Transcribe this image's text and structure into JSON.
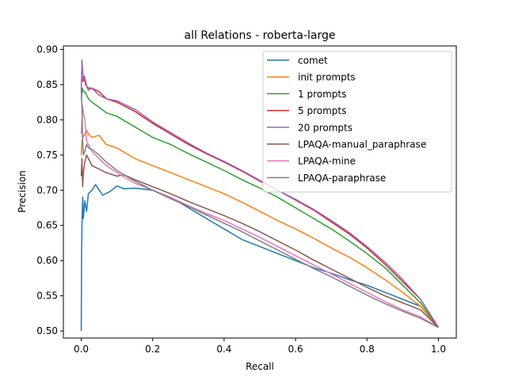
{
  "chart_data": {
    "type": "line",
    "title": "all Relations - roberta-large",
    "xlabel": "Recall",
    "ylabel": "Precision",
    "xlim": [
      -0.05,
      1.05
    ],
    "ylim": [
      0.49,
      0.905
    ],
    "xticks": [
      0.0,
      0.2,
      0.4,
      0.6,
      0.8,
      1.0
    ],
    "xtick_labels": [
      "0.0",
      "0.2",
      "0.4",
      "0.6",
      "0.8",
      "1.0"
    ],
    "yticks": [
      0.5,
      0.55,
      0.6,
      0.65,
      0.7,
      0.75,
      0.8,
      0.85,
      0.9
    ],
    "ytick_labels": [
      "0.50",
      "0.55",
      "0.60",
      "0.65",
      "0.70",
      "0.75",
      "0.80",
      "0.85",
      "0.90"
    ],
    "grid": false,
    "legend_position": "top-right",
    "series": [
      {
        "name": "comet",
        "color": "#1f77b4",
        "x": [
          0.0,
          0.001,
          0.002,
          0.004,
          0.006,
          0.01,
          0.015,
          0.02,
          0.03,
          0.04,
          0.06,
          0.08,
          0.1,
          0.12,
          0.15,
          0.2,
          0.25,
          0.3,
          0.35,
          0.4,
          0.45,
          0.5,
          0.55,
          0.6,
          0.65,
          0.7,
          0.75,
          0.8,
          0.85,
          0.9,
          0.95,
          1.0
        ],
        "y": [
          0.5,
          0.61,
          0.65,
          0.69,
          0.66,
          0.685,
          0.67,
          0.695,
          0.7,
          0.708,
          0.693,
          0.698,
          0.706,
          0.702,
          0.703,
          0.7,
          0.69,
          0.675,
          0.66,
          0.645,
          0.63,
          0.62,
          0.61,
          0.6,
          0.59,
          0.582,
          0.573,
          0.565,
          0.555,
          0.545,
          0.535,
          0.505
        ]
      },
      {
        "name": "init prompts",
        "color": "#ff7f0e",
        "x": [
          0.0,
          0.002,
          0.005,
          0.01,
          0.015,
          0.02,
          0.03,
          0.05,
          0.07,
          0.1,
          0.15,
          0.2,
          0.25,
          0.3,
          0.35,
          0.4,
          0.45,
          0.5,
          0.55,
          0.6,
          0.65,
          0.7,
          0.75,
          0.8,
          0.85,
          0.9,
          0.95,
          1.0
        ],
        "y": [
          0.75,
          0.77,
          0.775,
          0.78,
          0.785,
          0.78,
          0.775,
          0.778,
          0.765,
          0.76,
          0.745,
          0.735,
          0.725,
          0.715,
          0.705,
          0.695,
          0.683,
          0.67,
          0.657,
          0.645,
          0.632,
          0.618,
          0.605,
          0.59,
          0.573,
          0.555,
          0.535,
          0.505
        ]
      },
      {
        "name": "1 prompts",
        "color": "#2ca02c",
        "x": [
          0.0,
          0.003,
          0.006,
          0.01,
          0.02,
          0.03,
          0.05,
          0.07,
          0.1,
          0.15,
          0.2,
          0.25,
          0.3,
          0.35,
          0.4,
          0.45,
          0.5,
          0.55,
          0.6,
          0.65,
          0.7,
          0.75,
          0.8,
          0.85,
          0.9,
          0.95,
          1.0
        ],
        "y": [
          0.83,
          0.845,
          0.84,
          0.84,
          0.83,
          0.825,
          0.818,
          0.81,
          0.805,
          0.79,
          0.775,
          0.765,
          0.752,
          0.74,
          0.728,
          0.715,
          0.703,
          0.69,
          0.675,
          0.66,
          0.645,
          0.628,
          0.61,
          0.59,
          0.565,
          0.54,
          0.505
        ]
      },
      {
        "name": "5 prompts",
        "color": "#d62728",
        "x": [
          0.0,
          0.002,
          0.004,
          0.008,
          0.012,
          0.02,
          0.03,
          0.05,
          0.07,
          0.1,
          0.15,
          0.2,
          0.25,
          0.3,
          0.35,
          0.4,
          0.45,
          0.5,
          0.55,
          0.6,
          0.65,
          0.7,
          0.75,
          0.8,
          0.85,
          0.9,
          0.95,
          1.0
        ],
        "y": [
          0.85,
          0.86,
          0.855,
          0.862,
          0.85,
          0.845,
          0.845,
          0.84,
          0.83,
          0.825,
          0.812,
          0.795,
          0.78,
          0.765,
          0.752,
          0.74,
          0.727,
          0.713,
          0.7,
          0.686,
          0.672,
          0.655,
          0.638,
          0.618,
          0.595,
          0.57,
          0.545,
          0.505
        ]
      },
      {
        "name": "20 prompts",
        "color": "#9467bd",
        "x": [
          0.0,
          0.001,
          0.002,
          0.004,
          0.006,
          0.01,
          0.015,
          0.02,
          0.03,
          0.05,
          0.07,
          0.1,
          0.15,
          0.2,
          0.25,
          0.3,
          0.35,
          0.4,
          0.45,
          0.5,
          0.55,
          0.6,
          0.65,
          0.7,
          0.75,
          0.8,
          0.85,
          0.9,
          0.95,
          1.0
        ],
        "y": [
          0.84,
          0.86,
          0.885,
          0.87,
          0.855,
          0.86,
          0.848,
          0.842,
          0.845,
          0.835,
          0.83,
          0.827,
          0.815,
          0.797,
          0.782,
          0.767,
          0.753,
          0.741,
          0.728,
          0.714,
          0.7,
          0.687,
          0.673,
          0.657,
          0.64,
          0.62,
          0.598,
          0.573,
          0.545,
          0.505
        ]
      },
      {
        "name": "LPAQA-manual_paraphrase",
        "color": "#8c564b",
        "x": [
          0.0,
          0.002,
          0.004,
          0.006,
          0.01,
          0.015,
          0.02,
          0.03,
          0.05,
          0.07,
          0.1,
          0.12,
          0.15,
          0.2,
          0.25,
          0.3,
          0.35,
          0.4,
          0.45,
          0.5,
          0.55,
          0.6,
          0.65,
          0.7,
          0.75,
          0.8,
          0.85,
          0.9,
          0.95,
          1.0
        ],
        "y": [
          0.72,
          0.745,
          0.705,
          0.725,
          0.74,
          0.75,
          0.745,
          0.735,
          0.73,
          0.725,
          0.72,
          0.722,
          0.715,
          0.705,
          0.695,
          0.684,
          0.674,
          0.664,
          0.653,
          0.641,
          0.628,
          0.615,
          0.601,
          0.588,
          0.575,
          0.562,
          0.55,
          0.54,
          0.53,
          0.505
        ]
      },
      {
        "name": "LPAQA-mine",
        "color": "#e377c2",
        "x": [
          0.0,
          0.002,
          0.004,
          0.006,
          0.01,
          0.015,
          0.02,
          0.03,
          0.05,
          0.07,
          0.1,
          0.15,
          0.2,
          0.25,
          0.3,
          0.35,
          0.4,
          0.45,
          0.5,
          0.55,
          0.6,
          0.65,
          0.7,
          0.75,
          0.8,
          0.85,
          0.9,
          0.95,
          1.0
        ],
        "y": [
          0.78,
          0.8,
          0.82,
          0.81,
          0.8,
          0.77,
          0.765,
          0.755,
          0.745,
          0.735,
          0.725,
          0.71,
          0.7,
          0.69,
          0.678,
          0.667,
          0.657,
          0.645,
          0.633,
          0.62,
          0.607,
          0.594,
          0.581,
          0.568,
          0.555,
          0.542,
          0.53,
          0.52,
          0.505
        ]
      },
      {
        "name": "LPAQA-paraphrase",
        "color": "#7f7f7f",
        "x": [
          0.0,
          0.002,
          0.004,
          0.006,
          0.01,
          0.015,
          0.02,
          0.03,
          0.05,
          0.07,
          0.1,
          0.15,
          0.2,
          0.25,
          0.3,
          0.35,
          0.4,
          0.45,
          0.5,
          0.55,
          0.6,
          0.65,
          0.7,
          0.75,
          0.8,
          0.85,
          0.9,
          0.95,
          1.0
        ],
        "y": [
          0.84,
          0.82,
          0.77,
          0.75,
          0.755,
          0.765,
          0.76,
          0.758,
          0.75,
          0.74,
          0.728,
          0.713,
          0.7,
          0.688,
          0.677,
          0.665,
          0.653,
          0.641,
          0.628,
          0.615,
          0.602,
          0.589,
          0.577,
          0.564,
          0.551,
          0.539,
          0.528,
          0.518,
          0.505
        ]
      }
    ]
  }
}
